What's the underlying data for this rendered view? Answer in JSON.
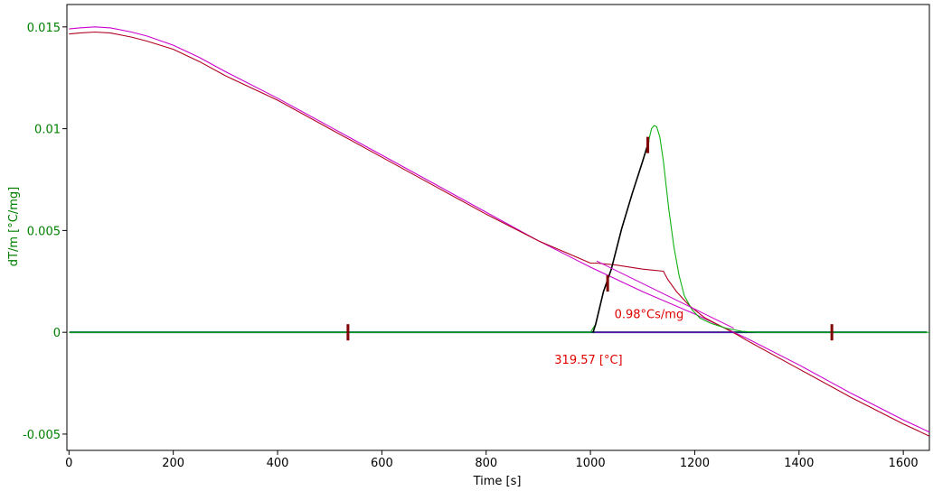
{
  "chart_data": {
    "type": "line",
    "xlabel": "Time [s]",
    "ylabel": "dT/m  [°C/mg]",
    "xlim": [
      -4,
      1650
    ],
    "ylim": [
      -0.0058,
      0.0161
    ],
    "x_ticks": [
      0,
      200,
      400,
      600,
      800,
      1000,
      1200,
      1400,
      1600
    ],
    "y_ticks": [
      {
        "value": 0.015,
        "label": "0.015"
      },
      {
        "value": 0.01,
        "label": "0.01"
      },
      {
        "value": 0.005,
        "label": "0.005"
      },
      {
        "value": 0,
        "label": "0"
      },
      {
        "value": -0.005,
        "label": "-0.005"
      }
    ],
    "grid": false,
    "colors": {
      "axis_text": "#008000",
      "magenta": "#cc00cc",
      "dark_red": "#b00020",
      "green": "#10b010",
      "baseline": "#004858",
      "violet": "#7b00c8",
      "marker": "#800000",
      "annotation": "#e00000",
      "black": "#000000"
    },
    "series": [
      {
        "color": "magenta",
        "points": [
          [
            0,
            0.0149
          ],
          [
            20,
            0.01495
          ],
          [
            50,
            0.015
          ],
          [
            80,
            0.01495
          ],
          [
            120,
            0.01475
          ],
          [
            150,
            0.01455
          ],
          [
            200,
            0.0141
          ],
          [
            250,
            0.0135
          ],
          [
            300,
            0.0128
          ],
          [
            400,
            0.0115
          ],
          [
            500,
            0.0101
          ],
          [
            600,
            0.0087
          ],
          [
            700,
            0.0073
          ],
          [
            800,
            0.0059
          ],
          [
            900,
            0.0045
          ],
          [
            1000,
            0.0032
          ],
          [
            1100,
            0.002
          ],
          [
            1200,
            0.0009
          ],
          [
            1300,
            -0.0003
          ],
          [
            1400,
            -0.0016
          ],
          [
            1500,
            -0.003
          ],
          [
            1600,
            -0.0043
          ],
          [
            1650,
            -0.0049
          ]
        ]
      },
      {
        "color": "dark_red",
        "points": [
          [
            0,
            0.01465
          ],
          [
            20,
            0.0147
          ],
          [
            50,
            0.01475
          ],
          [
            80,
            0.0147
          ],
          [
            120,
            0.0145
          ],
          [
            150,
            0.0143
          ],
          [
            200,
            0.0139
          ],
          [
            250,
            0.0133
          ],
          [
            300,
            0.0126
          ],
          [
            400,
            0.0114
          ],
          [
            500,
            0.01
          ],
          [
            600,
            0.0086
          ],
          [
            700,
            0.0072
          ],
          [
            800,
            0.0058
          ],
          [
            900,
            0.0045
          ],
          [
            1000,
            0.0034
          ],
          [
            1012,
            0.0034
          ],
          [
            1050,
            0.0033
          ],
          [
            1100,
            0.0031
          ],
          [
            1140,
            0.003
          ],
          [
            1148,
            0.0026
          ],
          [
            1165,
            0.002
          ],
          [
            1190,
            0.0013
          ],
          [
            1220,
            0.0007
          ],
          [
            1250,
            0.0003
          ],
          [
            1280,
            -0.0001
          ],
          [
            1300,
            -0.0004
          ],
          [
            1400,
            -0.0018
          ],
          [
            1500,
            -0.0032
          ],
          [
            1600,
            -0.0045
          ],
          [
            1650,
            -0.0051
          ]
        ]
      },
      {
        "color": "green",
        "points": [
          [
            0,
            0
          ],
          [
            1000,
            0
          ],
          [
            1010,
            0.0004
          ],
          [
            1025,
            0.002
          ],
          [
            1040,
            0.0031
          ],
          [
            1060,
            0.0051
          ],
          [
            1080,
            0.0068
          ],
          [
            1100,
            0.0084
          ],
          [
            1110,
            0.0092
          ],
          [
            1117,
            0.01
          ],
          [
            1122,
            0.01015
          ],
          [
            1127,
            0.0101
          ],
          [
            1133,
            0.0096
          ],
          [
            1140,
            0.0084
          ],
          [
            1150,
            0.0061
          ],
          [
            1160,
            0.0042
          ],
          [
            1170,
            0.0028
          ],
          [
            1180,
            0.0018
          ],
          [
            1195,
            0.0011
          ],
          [
            1210,
            0.0007
          ],
          [
            1230,
            0.00045
          ],
          [
            1260,
            0.0002
          ],
          [
            1290,
            5e-05
          ],
          [
            1320,
            0
          ],
          [
            1650,
            0
          ]
        ]
      },
      {
        "color": "black",
        "points": [
          [
            1005,
            0
          ],
          [
            1010,
            0.0004
          ],
          [
            1025,
            0.002
          ],
          [
            1040,
            0.0031
          ],
          [
            1060,
            0.0051
          ],
          [
            1080,
            0.0068
          ],
          [
            1100,
            0.0084
          ],
          [
            1112,
            0.0094
          ]
        ]
      },
      {
        "color": "violet",
        "points": [
          [
            1008,
            0
          ],
          [
            1275,
            0
          ]
        ]
      }
    ],
    "baseline": {
      "y": 0,
      "color": "baseline"
    },
    "tangents": [
      {
        "color": "magenta",
        "points": [
          [
            1012,
            0.0035
          ],
          [
            1275,
            0.0002
          ]
        ]
      }
    ],
    "markers": [
      {
        "x": 535,
        "y": 0
      },
      {
        "x": 1463,
        "y": 0
      },
      {
        "x": 1033,
        "y": 0.0024
      },
      {
        "x": 1110,
        "y": 0.0092
      }
    ],
    "annotations": [
      {
        "text": "0.98°Cs/mg",
        "x": 1046,
        "y": 0.0007
      },
      {
        "text": "319.57 [°C]",
        "x": 931,
        "y": -0.00155
      }
    ]
  }
}
